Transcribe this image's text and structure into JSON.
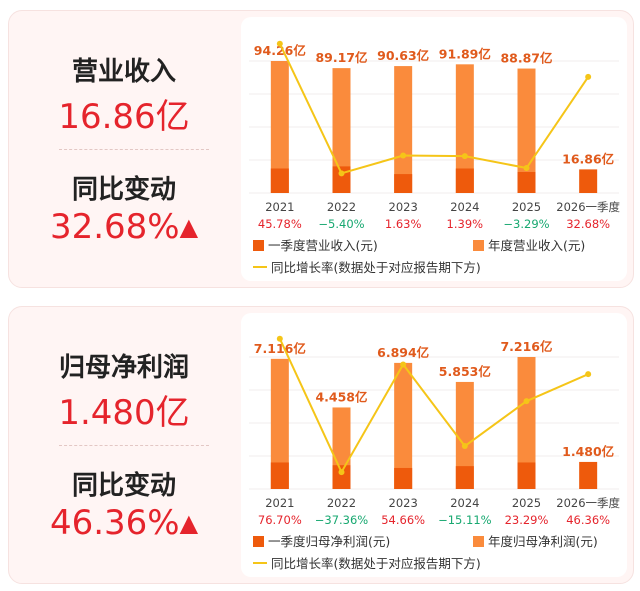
{
  "colors": {
    "q1_bar": "#ee5a0c",
    "annual_bar": "#fa8b3c",
    "line": "#f5c518",
    "positive": "#e5242c",
    "negative": "#17a870",
    "value_label": "#e05a1c",
    "kpi": "#e5242c"
  },
  "revenue": {
    "label": "营业收入",
    "value": "16.86亿",
    "change_label": "同比变动",
    "change_value": "32.68%",
    "arrow_icon": "arrow-up-icon",
    "legend": {
      "q1": "一季度营业收入(元)",
      "annual": "年度营业收入(元)",
      "line": "同比增长率(数据处于对应报告期下方)"
    }
  },
  "net_profit": {
    "label": "归母净利润",
    "value": "1.480亿",
    "change_label": "同比变动",
    "change_value": "46.36%",
    "arrow_icon": "arrow-up-icon",
    "legend": {
      "q1": "一季度归母净利润(元)",
      "annual": "年度归母净利润(元)",
      "line": "同比增长率(数据处于对应报告期下方)"
    }
  },
  "chart_data": [
    {
      "type": "bar",
      "categories": [
        "2021",
        "2022",
        "2023",
        "2024",
        "2025",
        "2026一季度"
      ],
      "series": [
        {
          "name": "年度营业收入(元)",
          "values": [
            94.26,
            89.17,
            90.63,
            91.89,
            88.87,
            null
          ],
          "labels": [
            "94.26亿",
            "89.17亿",
            "90.63亿",
            "91.89亿",
            "88.87亿",
            ""
          ]
        },
        {
          "name": "一季度营业收入(元)",
          "values": [
            17.5,
            19.0,
            13.5,
            17.5,
            15.0,
            16.86
          ],
          "labels": [
            "",
            "",
            "",
            "",
            "",
            "16.86亿"
          ]
        },
        {
          "name": "同比增长率(数据处于对应报告期下方)",
          "type": "line",
          "values": [
            45.78,
            -5.4,
            1.63,
            1.39,
            -3.29,
            32.68
          ],
          "labels": [
            "45.78%",
            "−5.40%",
            "1.63%",
            "1.39%",
            "−3.29%",
            "32.68%"
          ]
        }
      ]
    },
    {
      "type": "bar",
      "categories": [
        "2021",
        "2022",
        "2023",
        "2024",
        "2025",
        "2026一季度"
      ],
      "series": [
        {
          "name": "年度归母净利润(元)",
          "values": [
            7.116,
            4.458,
            6.894,
            5.853,
            7.216,
            null
          ],
          "labels": [
            "7.116亿",
            "4.458亿",
            "6.894亿",
            "5.853亿",
            "7.216亿",
            ""
          ]
        },
        {
          "name": "一季度归母净利润(元)",
          "values": [
            1.45,
            1.3,
            1.15,
            1.25,
            1.45,
            1.48
          ],
          "labels": [
            "",
            "",
            "",
            "",
            "",
            "1.480亿"
          ]
        },
        {
          "name": "同比增长率(数据处于对应报告期下方)",
          "type": "line",
          "values": [
            76.7,
            -37.36,
            54.66,
            -15.11,
            23.29,
            46.36
          ],
          "labels": [
            "76.70%",
            "−37.36%",
            "54.66%",
            "−15.11%",
            "23.29%",
            "46.36%"
          ]
        }
      ]
    }
  ]
}
